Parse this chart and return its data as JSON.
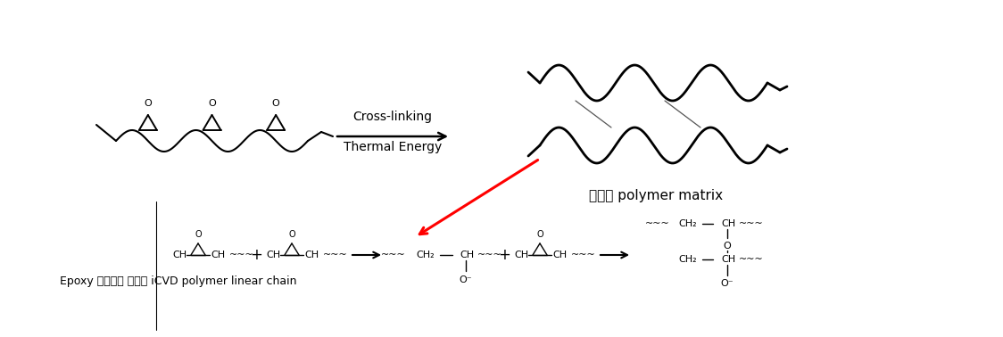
{
  "bg_color": "#ffffff",
  "fig_width": 11.24,
  "fig_height": 3.78,
  "label_linear": "Epoxy 작용기를 가지는 iCVD polymer linear chain",
  "label_crosslinked": "가교된 polymer matrix",
  "arrow_label_top": "Cross-linking",
  "arrow_label_bottom": "Thermal Energy"
}
